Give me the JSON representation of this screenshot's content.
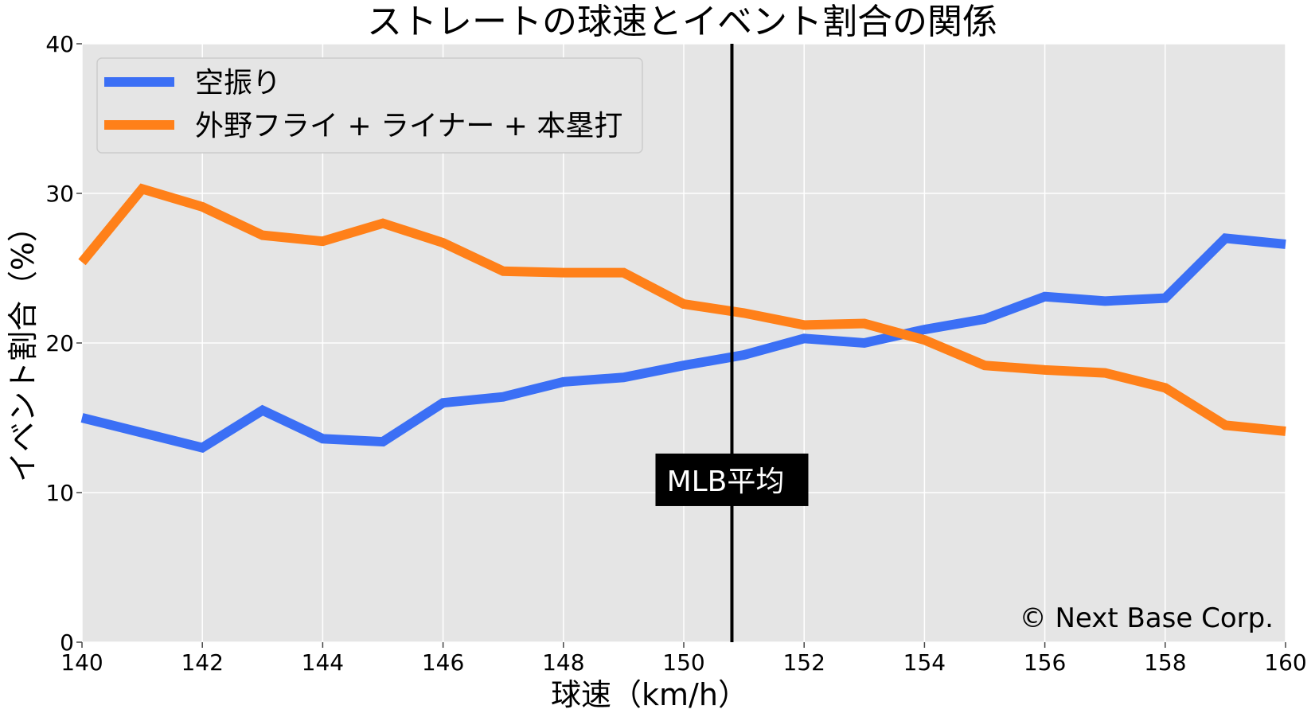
{
  "chart_data": {
    "type": "line",
    "title": "ストレートの球速とイベント割合の関係",
    "xlabel": "球速（km/h）",
    "ylabel": "イベント割合（%）",
    "xlim": [
      140,
      160
    ],
    "ylim": [
      0,
      40
    ],
    "x_ticks": [
      140,
      142,
      144,
      146,
      148,
      150,
      152,
      154,
      156,
      158,
      160
    ],
    "y_ticks": [
      0,
      10,
      20,
      30,
      40
    ],
    "grid": true,
    "background": "#e5e5e5",
    "legend_position": "top-left",
    "x": [
      140,
      141,
      142,
      143,
      144,
      145,
      146,
      147,
      148,
      149,
      150,
      151,
      152,
      153,
      154,
      155,
      156,
      157,
      158,
      159,
      160
    ],
    "series": [
      {
        "name": "空振り",
        "color": "#3b6ff5",
        "values": [
          15.0,
          14.0,
          13.0,
          15.5,
          13.6,
          13.4,
          16.0,
          16.4,
          17.4,
          17.7,
          18.5,
          19.2,
          20.3,
          20.0,
          20.9,
          21.6,
          23.1,
          22.8,
          23.0,
          27.0,
          26.6
        ]
      },
      {
        "name": "外野フライ + ライナー + 本塁打",
        "color": "#ff8019",
        "values": [
          25.4,
          30.3,
          29.1,
          27.2,
          26.8,
          28.0,
          26.7,
          24.8,
          24.7,
          24.7,
          22.6,
          22.0,
          21.2,
          21.3,
          20.2,
          18.5,
          18.2,
          18.0,
          17.0,
          14.5,
          14.1
        ]
      }
    ],
    "annotations": [
      {
        "type": "vline",
        "x": 150.8,
        "color": "#000000",
        "label": "MLB平均",
        "label_y": 10.8
      }
    ],
    "credit": "© Next Base Corp."
  }
}
